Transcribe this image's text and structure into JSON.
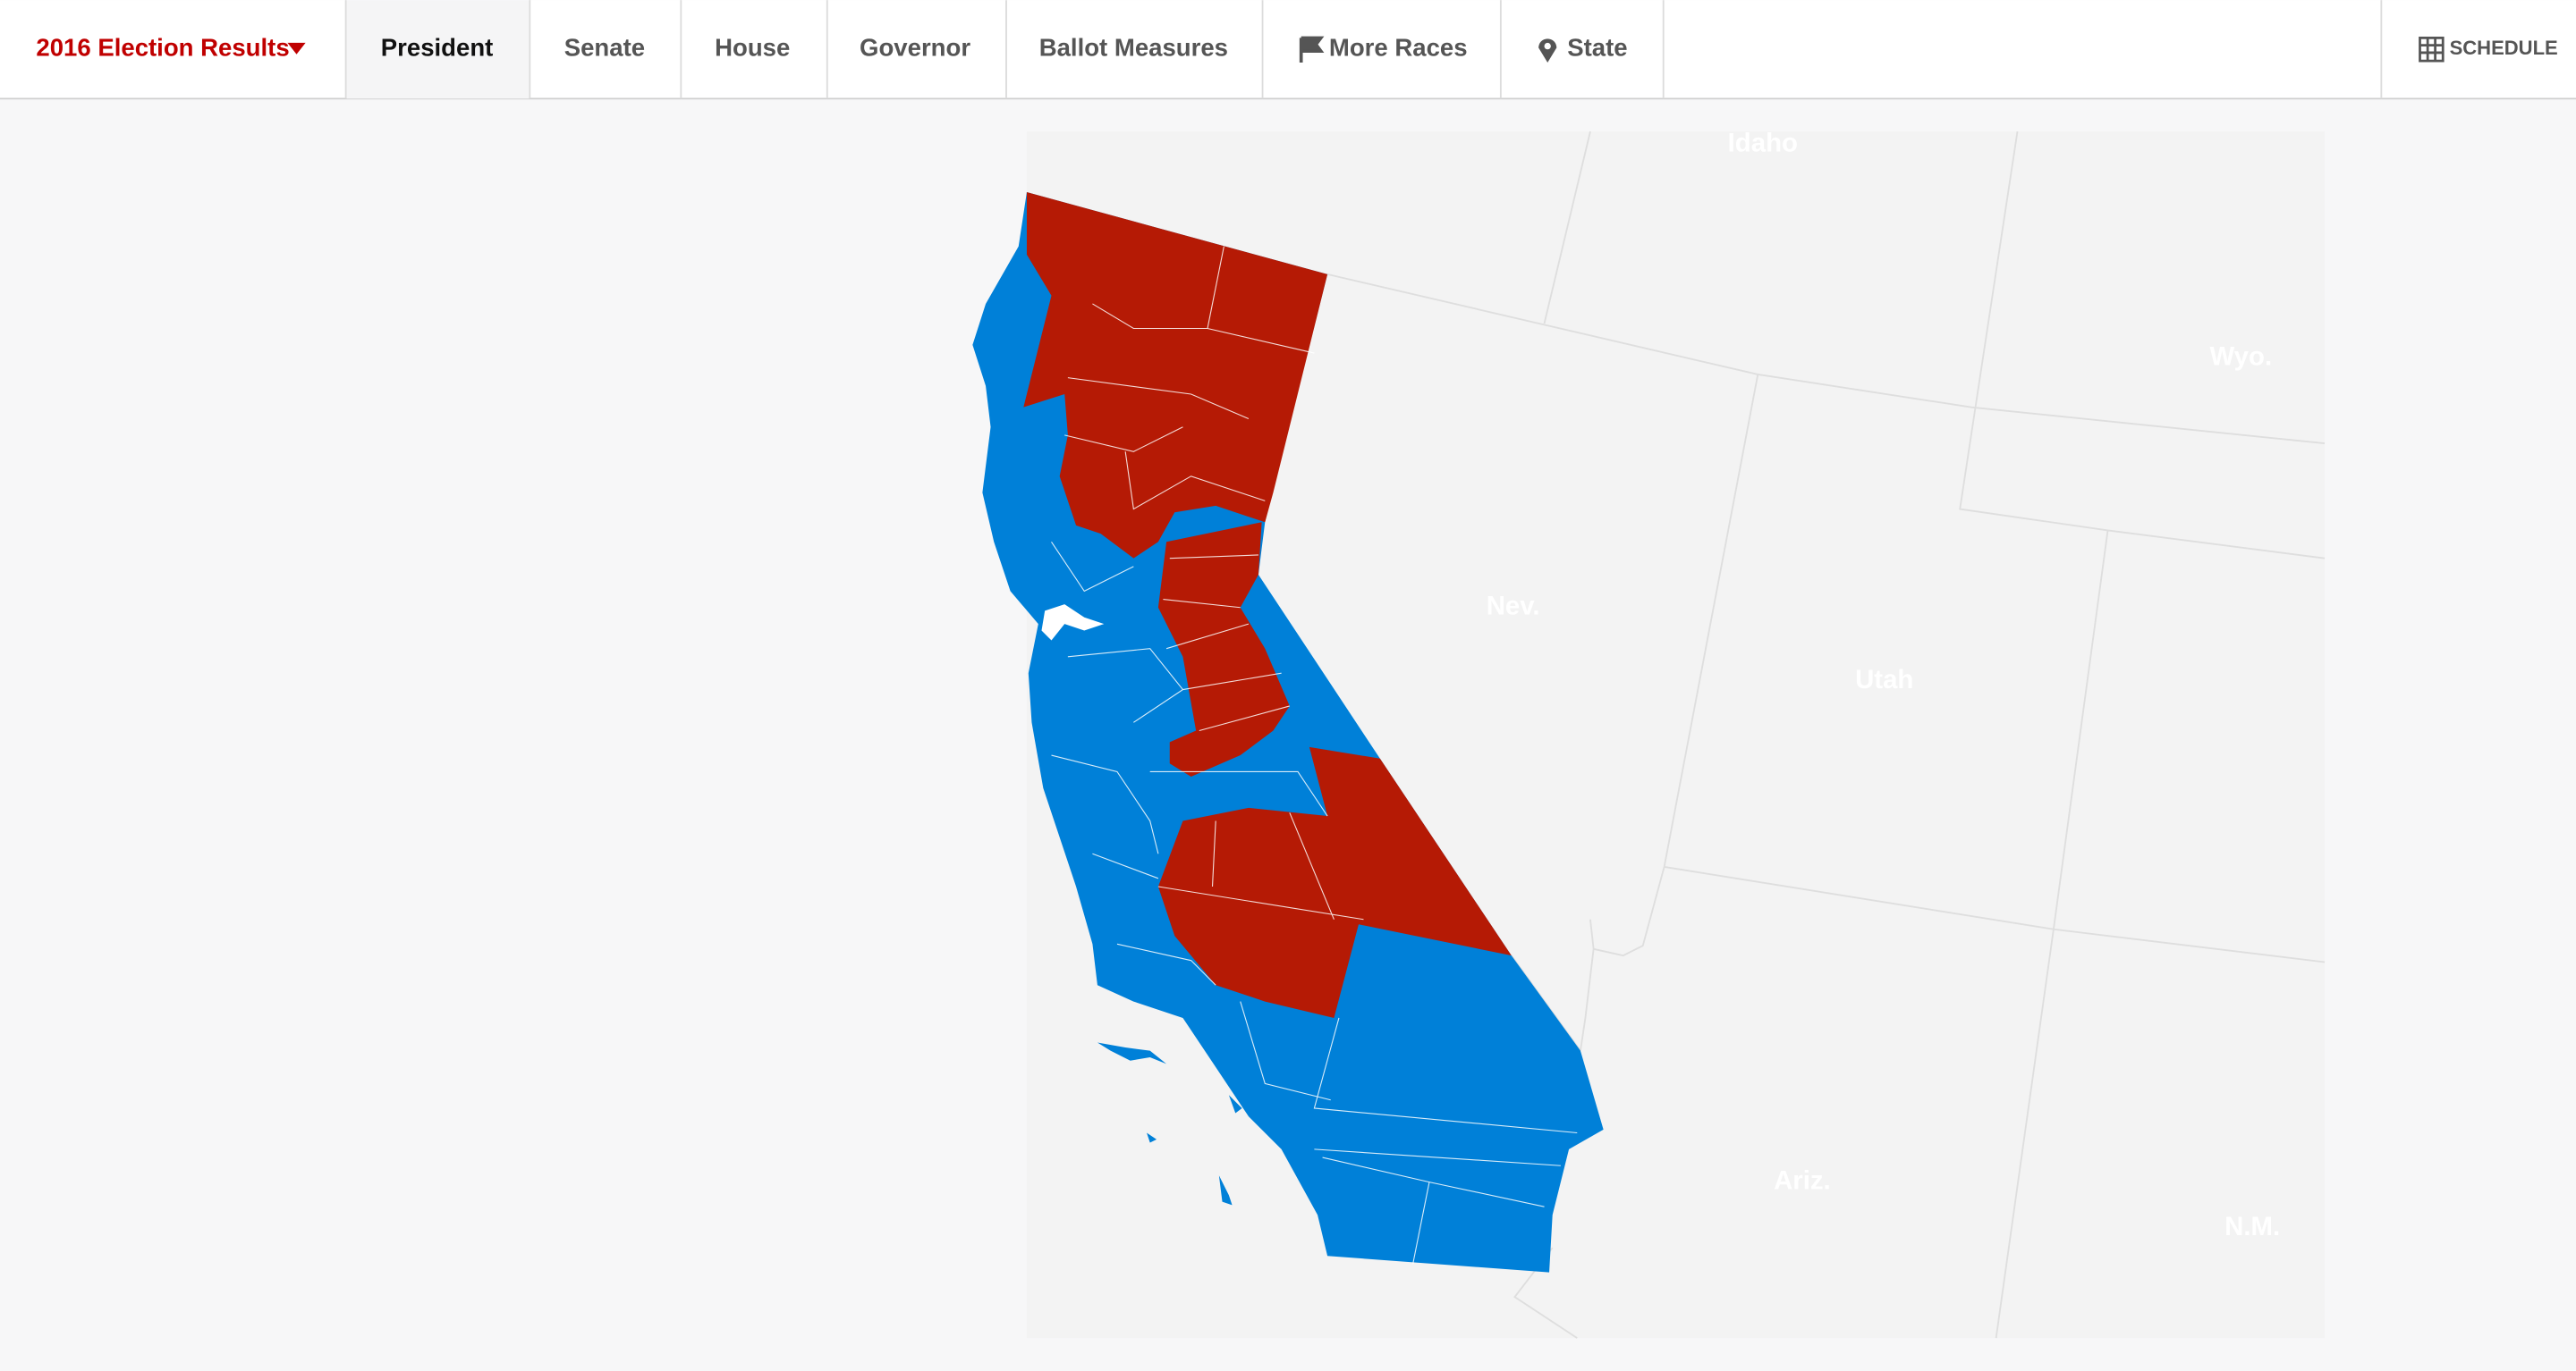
{
  "nav": {
    "title": "2016 Election Results",
    "tabs": [
      "President",
      "Senate",
      "House",
      "Governor",
      "Ballot Measures",
      "More Races",
      "State"
    ],
    "schedule": "SCHEDULE"
  },
  "map": {
    "labels": [
      "Idaho",
      "Wyo.",
      "Nev.",
      "Utah",
      "Ariz.",
      "N.M."
    ]
  }
}
